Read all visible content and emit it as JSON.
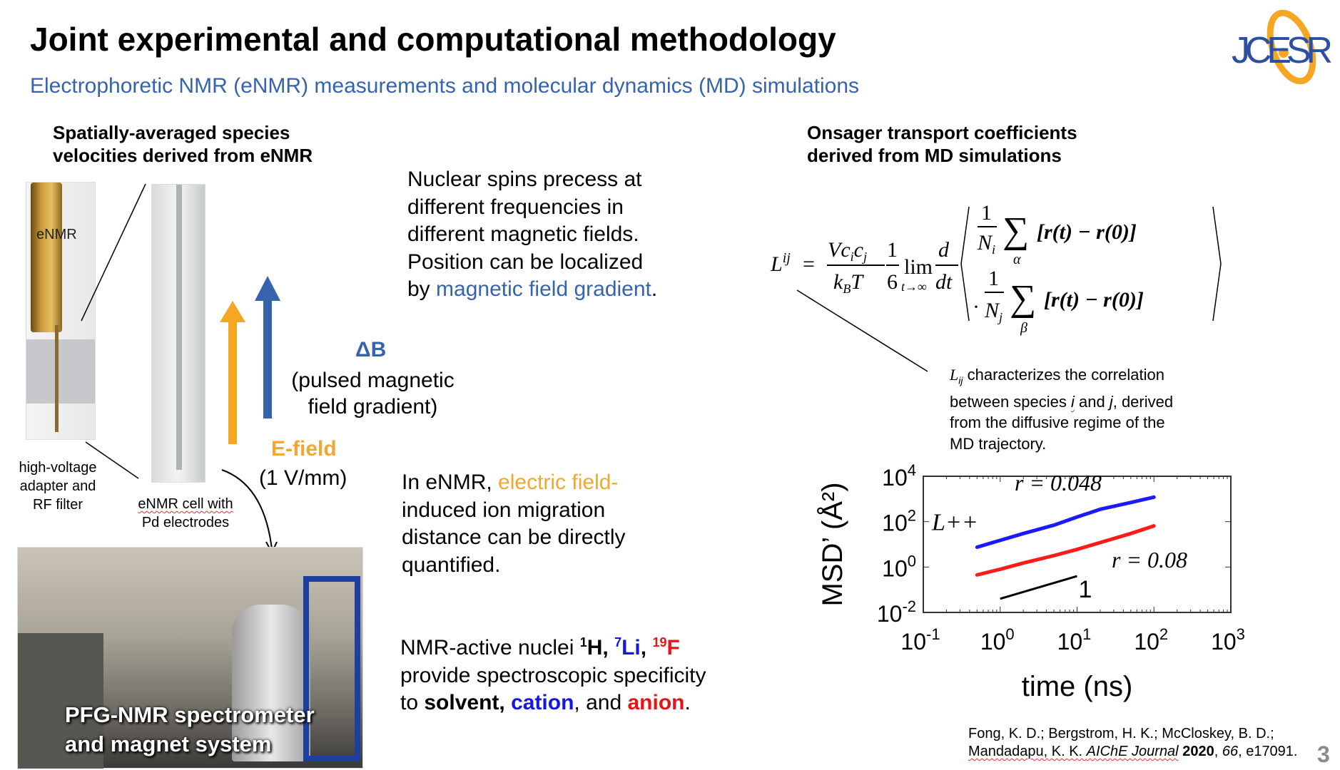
{
  "title": "Joint experimental and computational methodology",
  "subtitle": "Electrophoretic NMR (eNMR) measurements and molecular dynamics (MD) simulations",
  "logo": "JCESR",
  "left": {
    "header": [
      "Spatially-averaged species",
      "velocities derived from eNMR"
    ],
    "probe_label": "eNMR",
    "delta_b": "ΔB",
    "delta_b_desc": [
      "(pulsed magnetic",
      "field gradient)"
    ],
    "efield": "E-field",
    "efield_value": "(1 V/mm)",
    "adapter_label": [
      "high-voltage",
      "adapter and",
      "RF filter"
    ],
    "cell_label": [
      "eNMR cell with",
      "Pd electrodes"
    ],
    "photo_caption": [
      "PFG-NMR spectrometer",
      "and magnet system"
    ]
  },
  "middle": {
    "p1": [
      "Nuclear spins precess at",
      "different frequencies in",
      "different magnetic fields.",
      "Position can be localized",
      "by ",
      "magnetic field gradient",
      "."
    ],
    "p2": [
      "In eNMR, ",
      "electric field-",
      "induced ion migration",
      "distance can be directly",
      "quantified."
    ],
    "p3": {
      "lead": "NMR-active nuclei  ",
      "h_sup": "1",
      "h": "H, ",
      "li_sup": "7",
      "li": "Li",
      "comma": ", ",
      "f_sup": "19",
      "f": "F",
      "line2": "provide spectroscopic specificity",
      "to ": "to ",
      "solvent": "solvent",
      "cation": "cation",
      "and": ", and ",
      "anion": "anion",
      "dot": "."
    }
  },
  "right": {
    "header": [
      "Onsager transport coefficients",
      "derived from MD simulations"
    ],
    "equation": {
      "lhs": "L",
      "lhs_sup": "ij",
      "eq": "=",
      "num": "Vc",
      "num_i": "i",
      "num_c": "c",
      "num_j": "j",
      "den": "k",
      "den_b": "B",
      "den_t": "T",
      "one": "1",
      "six": "6",
      "lim": "lim",
      "lim_sub": "t→∞",
      "d": "d",
      "dt": "dt",
      "Ni": "N",
      "i": "i",
      "Nj": "N",
      "j": "j",
      "alpha": "α",
      "beta": "β",
      "term1": "[r(t) − r(0)]",
      "term2": "[r(t) − r(0)]",
      "dot": "·"
    },
    "lij_text": {
      "sym": "L",
      "sub": "ij",
      "lines": [
        " characterizes the correlation",
        "between species ",
        "i",
        " and ",
        "j",
        ", derived",
        "from the diffusive regime of the",
        "MD trajectory."
      ]
    },
    "citation": {
      "authors1": "Fong, K. D.; Bergstrom, H. K.; McCloskey, B. D.;",
      "authors2": "Mandadapu, K. K. ",
      "journal": "AIChE Journal",
      "year": "2020",
      "sep": ", ",
      "volume": "66",
      "article": ", e17091."
    }
  },
  "page_number": "3",
  "chart_data": {
    "type": "line",
    "xlabel": "time (ns)",
    "ylabel": "MSD’ (Å²)",
    "xscale": "log",
    "yscale": "log",
    "xlim": [
      0.1,
      1000
    ],
    "ylim": [
      0.01,
      10000
    ],
    "xticks": [
      "10-1",
      "100",
      "101",
      "102",
      "103"
    ],
    "yticks": [
      "10-2",
      "100",
      "102",
      "104"
    ],
    "panel_label": "L++",
    "series": [
      {
        "name": "r = 0.048",
        "color": "#1a1aff",
        "x": [
          0.5,
          1,
          2,
          5,
          10,
          20,
          50,
          100
        ],
        "y": [
          7.5,
          15,
          30,
          70,
          160,
          350,
          700,
          1200
        ]
      },
      {
        "name": "r = 0.08",
        "color": "#ff1a1a",
        "x": [
          0.5,
          1,
          2,
          5,
          10,
          20,
          50,
          100
        ],
        "y": [
          0.45,
          0.8,
          1.5,
          3.2,
          6,
          12,
          30,
          65
        ]
      }
    ],
    "slope_guide": {
      "label": "1",
      "x": [
        1,
        10
      ],
      "y": [
        0.04,
        0.4
      ]
    }
  }
}
